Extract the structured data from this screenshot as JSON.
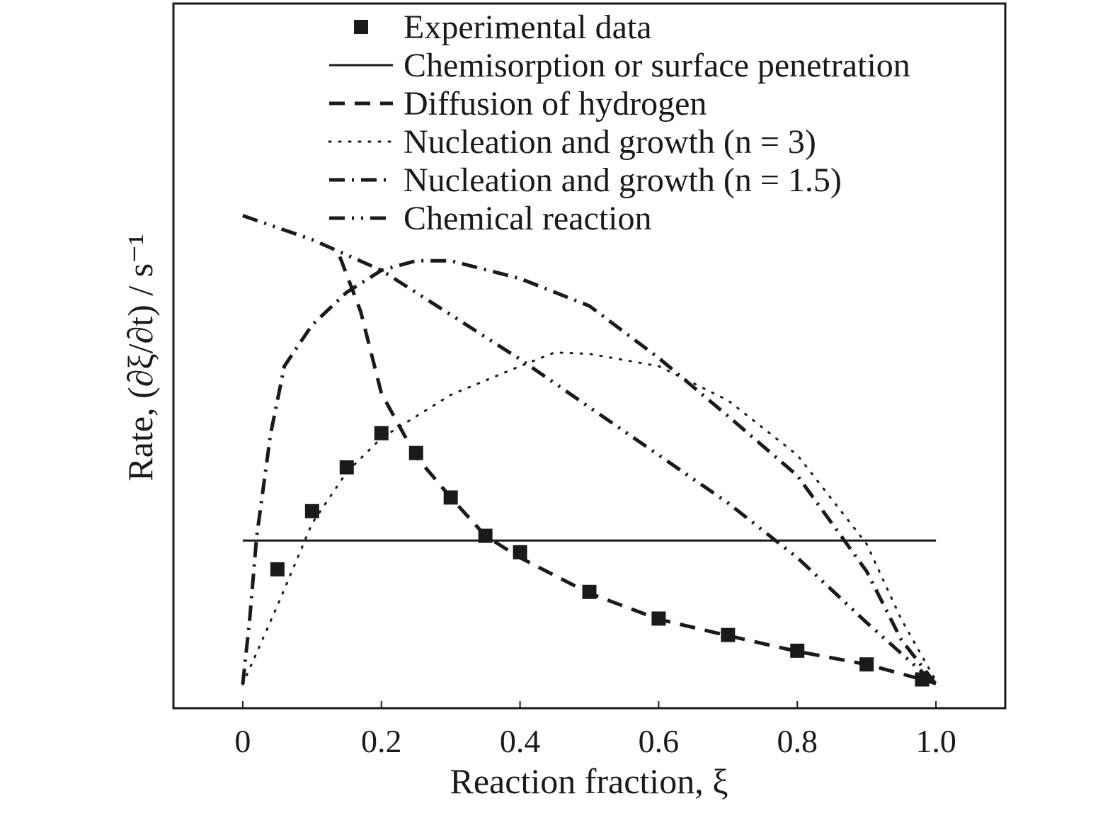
{
  "chart_data": {
    "type": "line",
    "title": "",
    "xlabel": "Reaction fraction, ξ",
    "ylabel": "Rate, (∂ξ/∂t) / s⁻¹",
    "xlim": [
      -0.1,
      1.1
    ],
    "ylim": [
      0,
      1.03
    ],
    "x_ticks": [
      0,
      0.2,
      0.4,
      0.6,
      0.8,
      1.0
    ],
    "x_tick_labels": [
      "0",
      "0.2",
      "0.4",
      "0.6",
      "0.8",
      "1.0"
    ],
    "y_ticks_labeled": false,
    "grid": false,
    "legend_position": "top-right",
    "colors": {
      "ink": "#1a1a1a",
      "background": "#ffffff"
    },
    "series": [
      {
        "name": "Experimental data",
        "style": "markers",
        "marker": "square",
        "x": [
          0.05,
          0.1,
          0.15,
          0.2,
          0.25,
          0.3,
          0.35,
          0.4,
          0.5,
          0.6,
          0.7,
          0.8,
          0.9,
          0.98
        ],
        "y": [
          0.203,
          0.288,
          0.352,
          0.402,
          0.373,
          0.308,
          0.252,
          0.228,
          0.17,
          0.131,
          0.107,
          0.084,
          0.064,
          0.042
        ]
      },
      {
        "name": "Chemisorption or surface penetration",
        "style": "solid",
        "x": [
          0,
          1.0
        ],
        "y": [
          0.245,
          0.245
        ]
      },
      {
        "name": "Diffusion of hydrogen",
        "style": "dashed",
        "x": [
          0.14,
          0.17,
          0.2,
          0.25,
          0.3,
          0.35,
          0.4,
          0.5,
          0.6,
          0.7,
          0.8,
          0.9,
          0.98,
          1.0
        ],
        "y": [
          0.66,
          0.58,
          0.46,
          0.368,
          0.308,
          0.252,
          0.22,
          0.168,
          0.13,
          0.106,
          0.083,
          0.064,
          0.042,
          0.036
        ]
      },
      {
        "name": "Nucleation and growth (n = 3)",
        "style": "dotted",
        "x": [
          0,
          0.05,
          0.1,
          0.15,
          0.2,
          0.3,
          0.4,
          0.45,
          0.5,
          0.6,
          0.7,
          0.8,
          0.9,
          0.95,
          1.0
        ],
        "y": [
          0.035,
          0.15,
          0.27,
          0.345,
          0.395,
          0.458,
          0.5,
          0.52,
          0.518,
          0.5,
          0.45,
          0.37,
          0.24,
          0.13,
          0.04
        ]
      },
      {
        "name": "Nucleation and growth (n = 1.5)",
        "style": "dashdot",
        "x": [
          0,
          0.01,
          0.02,
          0.04,
          0.06,
          0.1,
          0.15,
          0.2,
          0.25,
          0.3,
          0.4,
          0.5,
          0.6,
          0.7,
          0.8,
          0.9,
          0.95,
          1.0
        ],
        "y": [
          0.035,
          0.13,
          0.25,
          0.4,
          0.5,
          0.56,
          0.608,
          0.64,
          0.654,
          0.654,
          0.628,
          0.588,
          0.512,
          0.427,
          0.34,
          0.2,
          0.1,
          0.035
        ]
      },
      {
        "name": "Chemical reaction",
        "style": "dashdotdot",
        "x": [
          0,
          0.1,
          0.2,
          0.3,
          0.4,
          0.5,
          0.6,
          0.7,
          0.8,
          0.9,
          1.0
        ],
        "y": [
          0.72,
          0.685,
          0.64,
          0.575,
          0.51,
          0.44,
          0.37,
          0.3,
          0.22,
          0.125,
          0.035
        ]
      }
    ]
  }
}
